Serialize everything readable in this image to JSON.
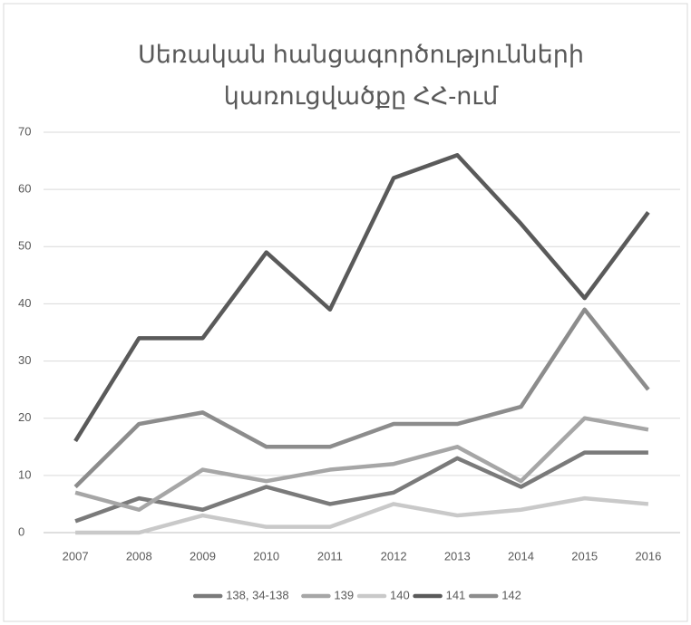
{
  "chart_data": {
    "type": "line",
    "title": [
      "Սեռական հանցագործությունների",
      "կառուցվածքը ՀՀ-ում"
    ],
    "categories": [
      "2007",
      "2008",
      "2009",
      "2010",
      "2011",
      "2012",
      "2013",
      "2014",
      "2015",
      "2016"
    ],
    "series": [
      {
        "name": "138, 34-138",
        "color": "#7a7a7a",
        "values": [
          2,
          6,
          4,
          8,
          5,
          7,
          13,
          8,
          14,
          14
        ]
      },
      {
        "name": "139",
        "color": "#a6a6a6",
        "values": [
          7,
          4,
          11,
          9,
          11,
          12,
          15,
          9,
          20,
          18
        ]
      },
      {
        "name": "140",
        "color": "#c9c9c9",
        "values": [
          0,
          0,
          3,
          1,
          1,
          5,
          3,
          4,
          6,
          5
        ]
      },
      {
        "name": "141",
        "color": "#5a5a5a",
        "values": [
          16,
          34,
          34,
          49,
          39,
          62,
          66,
          54,
          41,
          56
        ]
      },
      {
        "name": "142",
        "color": "#8c8c8c",
        "values": [
          8,
          19,
          21,
          15,
          15,
          19,
          19,
          22,
          39,
          25
        ]
      }
    ],
    "ylim": [
      0,
      70
    ],
    "yticks": [
      0,
      10,
      20,
      30,
      40,
      50,
      60,
      70
    ],
    "grid": true,
    "legend": "bottom"
  }
}
